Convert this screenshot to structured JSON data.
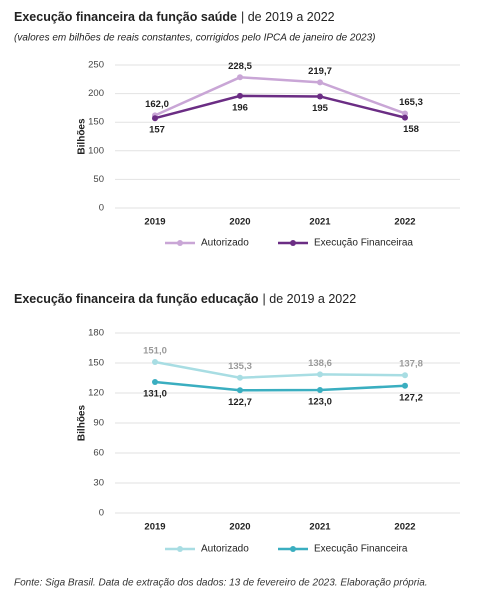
{
  "chart_data": [
    {
      "type": "line",
      "title": "Execução financeira da função saúde",
      "title_period": "| de 2019 a 2022",
      "subtitle": "(valores em bilhões de reais constantes, corrigidos pelo IPCA de janeiro de 2023)",
      "y_label": "Bilhões",
      "categories": [
        "2019",
        "2020",
        "2021",
        "2022"
      ],
      "series": [
        {
          "name": "Autorizado",
          "color": "#c9a6d6",
          "values": [
            162.0,
            228.5,
            219.7,
            165.3
          ],
          "value_labels": [
            "162,0",
            "228,5",
            "219,7",
            "165,3"
          ]
        },
        {
          "name": "Execução Financeiraa",
          "color": "#6b2d84",
          "values": [
            157,
            196,
            195,
            158
          ]
        }
      ],
      "ylim": [
        0,
        250
      ],
      "yticks": [
        0,
        50,
        100,
        150,
        200,
        250
      ],
      "grid": true
    },
    {
      "type": "line",
      "title": "Execução financeira da função educação",
      "title_period": "| de 2019 a 2022",
      "y_label": "Bilhões",
      "categories": [
        "2019",
        "2020",
        "2021",
        "2022"
      ],
      "series": [
        {
          "name": "Autorizado",
          "color": "#a8dde3",
          "values": [
            151.0,
            135.3,
            138.6,
            137.8
          ],
          "value_labels": [
            "151,0",
            "135,3",
            "138,6",
            "137,8"
          ]
        },
        {
          "name": "Execução Financeira",
          "color": "#3aaec0",
          "values": [
            131.0,
            122.7,
            123.0,
            127.2
          ],
          "value_labels": [
            "131,0",
            "122,7",
            "123,0",
            "127,2"
          ]
        }
      ],
      "ylim": [
        0,
        180
      ],
      "yticks": [
        0,
        30,
        60,
        90,
        120,
        150,
        180
      ],
      "grid": true
    }
  ],
  "source": "Fonte: Siga Brasil. Data de extração dos dados: 13 de fevereiro de 2023. Elaboração própria."
}
